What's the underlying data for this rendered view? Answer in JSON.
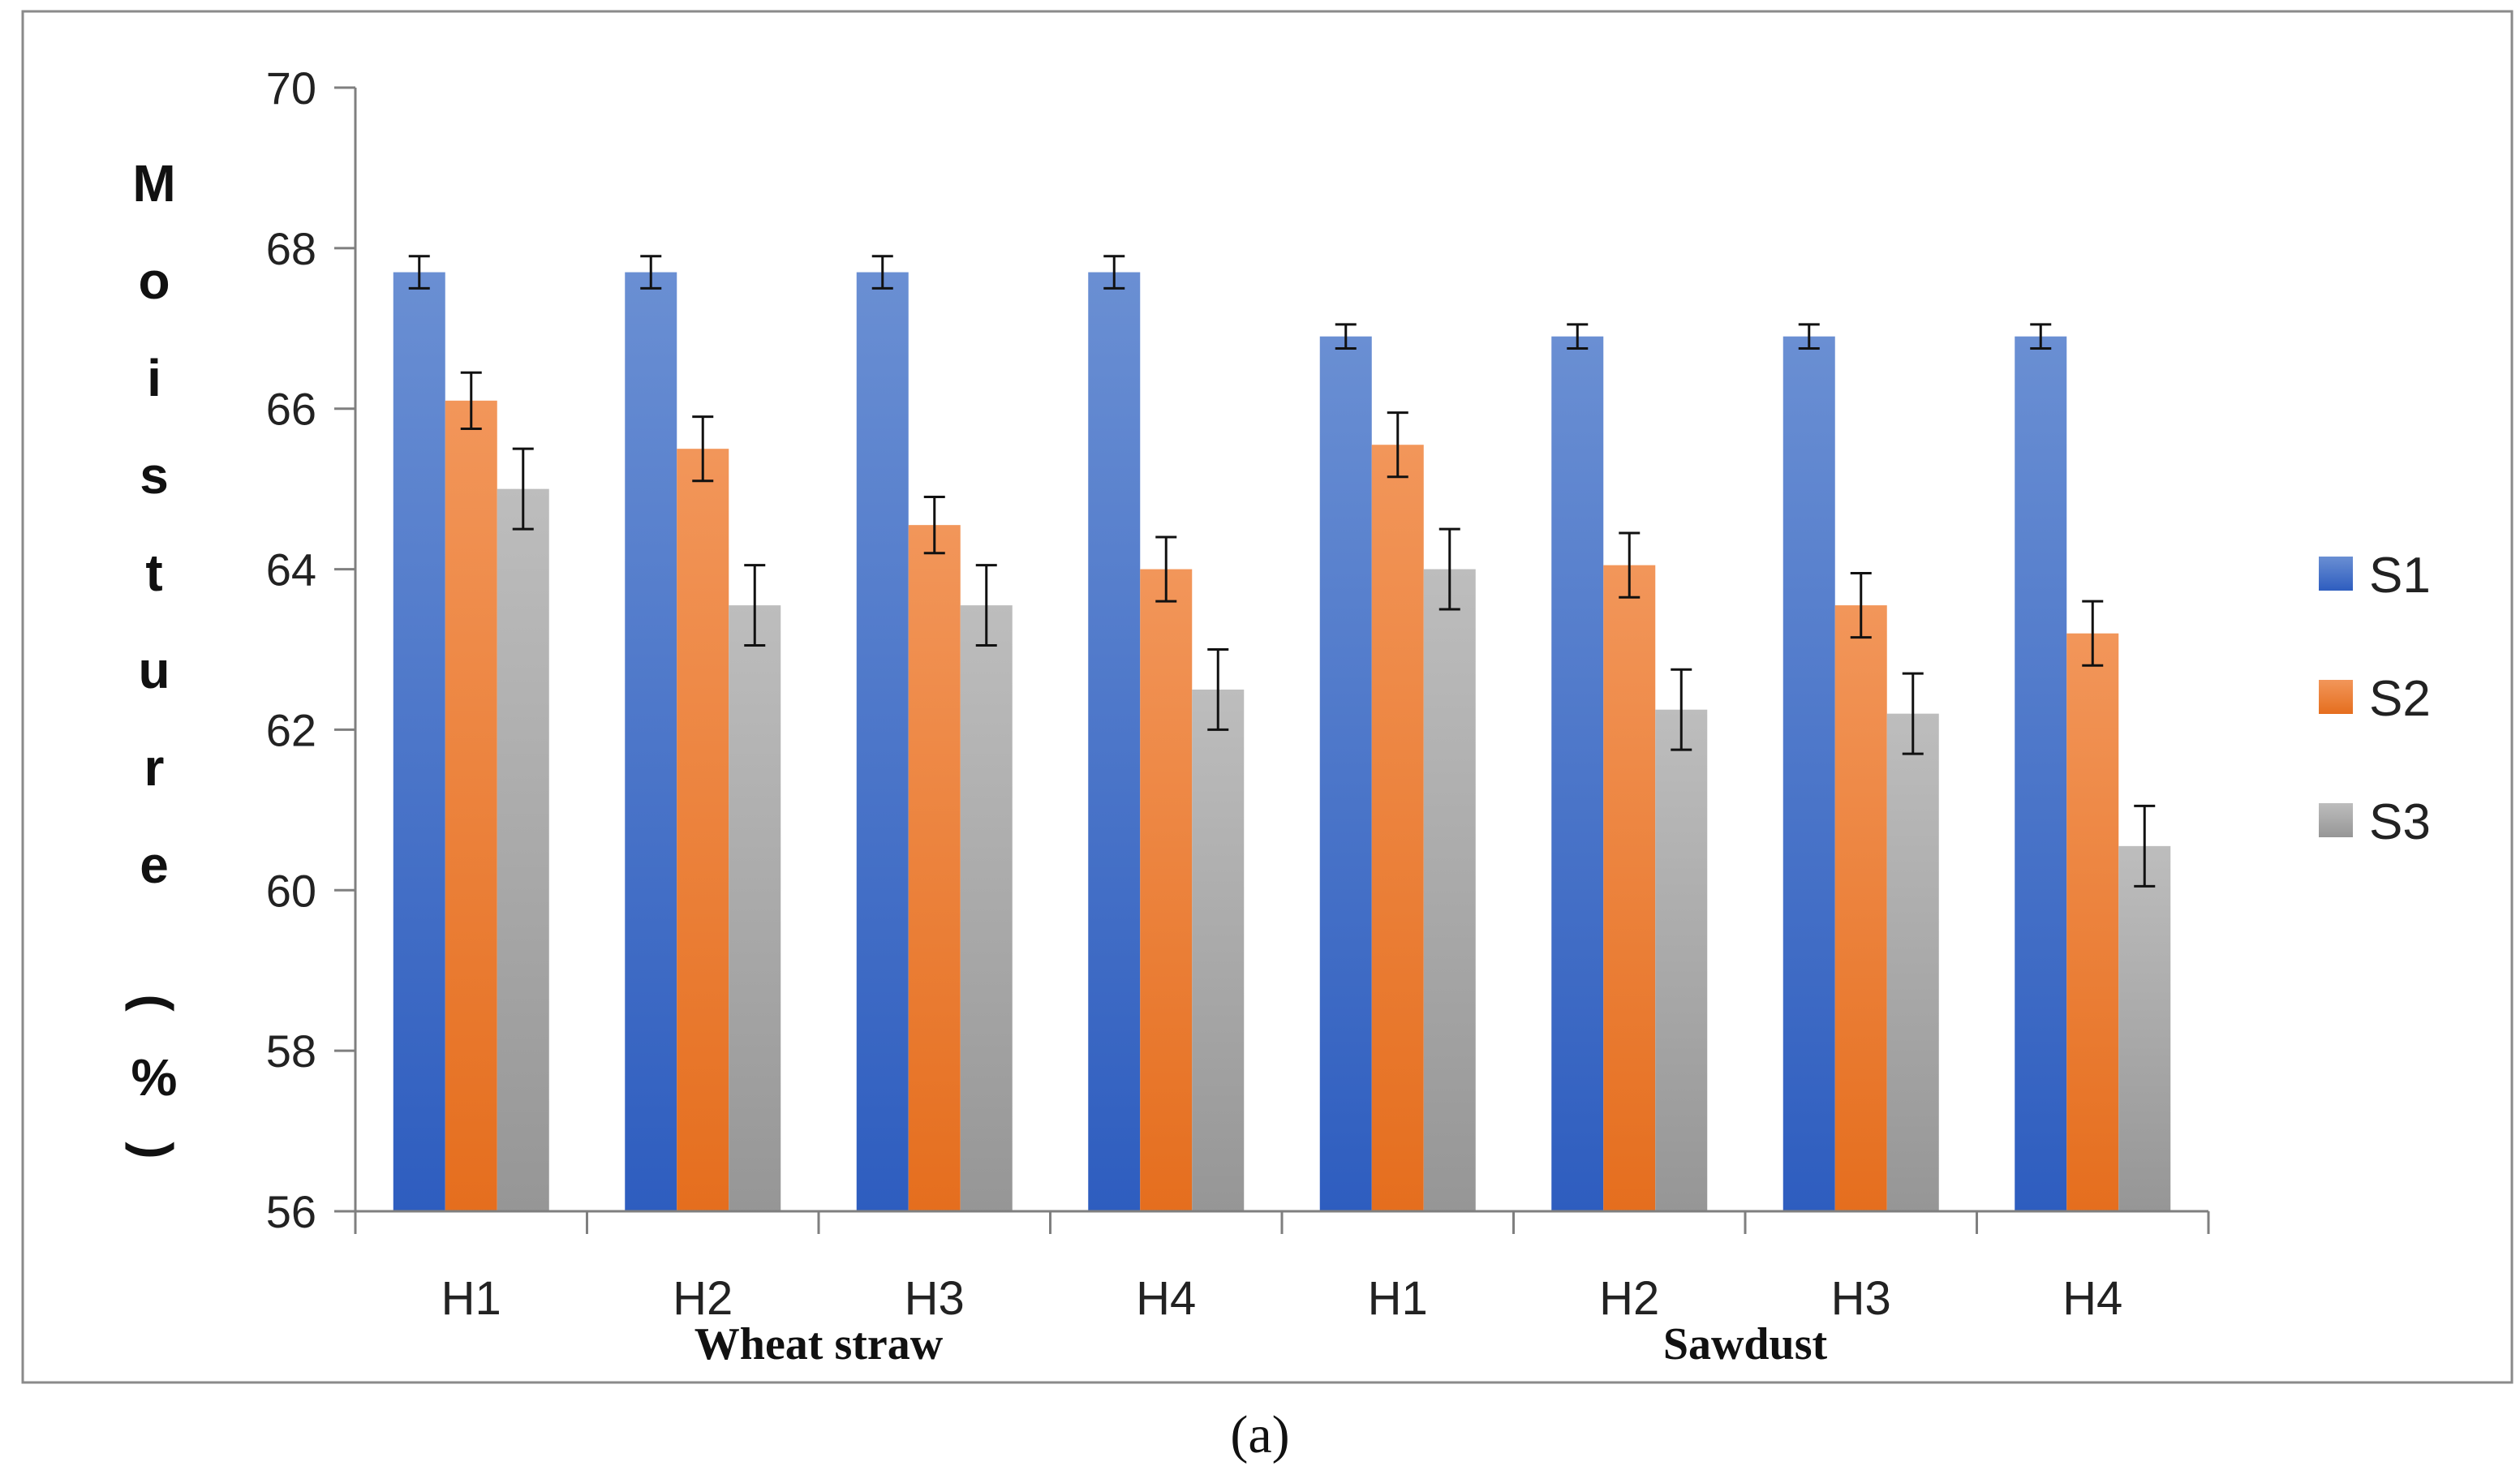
{
  "chart_data": {
    "type": "bar",
    "title": "",
    "xlabel": "",
    "ylabel": "Moisture (%)",
    "ylabel_chars": [
      "M",
      "o",
      "i",
      "s",
      "t",
      "u",
      "r",
      "e",
      "(",
      "%",
      ")"
    ],
    "ylim": [
      56,
      70
    ],
    "yticks": [
      "56",
      "58",
      "60",
      "62",
      "64",
      "66",
      "68",
      "70"
    ],
    "categories": [
      "H1",
      "H2",
      "H3",
      "H4",
      "H1",
      "H2",
      "H3",
      "H4"
    ],
    "groups": [
      {
        "label": "Wheat straw",
        "categories": [
          0,
          1,
          2,
          3
        ]
      },
      {
        "label": "Sawdust",
        "categories": [
          4,
          5,
          6,
          7
        ]
      }
    ],
    "series": [
      {
        "name": "S1",
        "color": "#4472C4",
        "values": [
          67.7,
          67.7,
          67.7,
          67.7,
          66.9,
          66.9,
          66.9,
          66.9
        ],
        "errors": [
          0.2,
          0.2,
          0.2,
          0.2,
          0.15,
          0.15,
          0.15,
          0.15
        ]
      },
      {
        "name": "S2",
        "color": "#ED7D31",
        "values": [
          66.1,
          65.5,
          64.55,
          64.0,
          65.55,
          64.05,
          63.55,
          63.2
        ],
        "errors": [
          0.35,
          0.4,
          0.35,
          0.4,
          0.4,
          0.4,
          0.4,
          0.4
        ]
      },
      {
        "name": "S3",
        "color": "#A5A5A5",
        "values": [
          65.0,
          63.55,
          63.55,
          62.5,
          64.0,
          62.25,
          62.2,
          60.55
        ],
        "errors": [
          0.5,
          0.5,
          0.5,
          0.5,
          0.5,
          0.5,
          0.5,
          0.5
        ]
      }
    ],
    "legend": {
      "position": "right",
      "entries": [
        "S1",
        "S2",
        "S3"
      ]
    },
    "grid": false,
    "caption": "(a)"
  }
}
